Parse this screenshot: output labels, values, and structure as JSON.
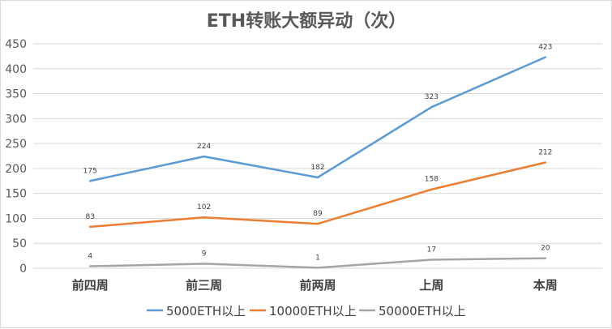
{
  "chart_data": {
    "type": "line",
    "title": "ETH转账大额异动（次）",
    "categories": [
      "前四周",
      "前三周",
      "前两周",
      "上周",
      "本周"
    ],
    "ylim": [
      0,
      450
    ],
    "yticks": [
      "0",
      "50",
      "100",
      "150",
      "200",
      "250",
      "300",
      "350",
      "400",
      "450"
    ],
    "grid": true,
    "legend_position": "bottom",
    "series": [
      {
        "name": "5000ETH以上",
        "color": "#5b9bd5",
        "values": [
          175,
          224,
          182,
          323,
          423
        ]
      },
      {
        "name": "10000ETH以上",
        "color": "#ed7d31",
        "values": [
          83,
          102,
          89,
          158,
          212
        ]
      },
      {
        "name": "50000ETH以上",
        "color": "#a5a5a5",
        "values": [
          4,
          9,
          1,
          17,
          20
        ]
      }
    ]
  }
}
